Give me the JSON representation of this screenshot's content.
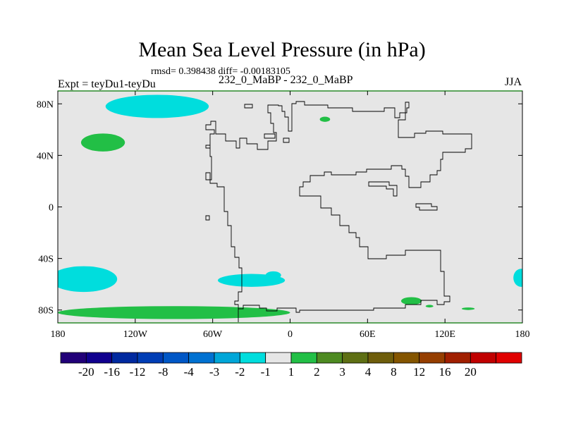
{
  "chart_data": {
    "type": "heatmap",
    "title": "Mean Sea Level Pressure (in hPa)",
    "stats_text": "rmsd= 0.398438 diff= -0.00183105",
    "left_label": "Expt = teyDu1-teyDu",
    "center_label": "232_0_MaBP - 232_0_MaBP",
    "right_label": "JJA",
    "xlim": [
      -180,
      180
    ],
    "ylim": [
      -90,
      90
    ],
    "x_ticks": [
      {
        "value": -180,
        "label": "180"
      },
      {
        "value": -120,
        "label": "120W"
      },
      {
        "value": -60,
        "label": "60W"
      },
      {
        "value": 0,
        "label": "0"
      },
      {
        "value": 60,
        "label": "60E"
      },
      {
        "value": 120,
        "label": "120E"
      },
      {
        "value": 180,
        "label": "180"
      }
    ],
    "y_ticks": [
      {
        "value": 80,
        "label": "80N"
      },
      {
        "value": 40,
        "label": "40N"
      },
      {
        "value": 0,
        "label": "0"
      },
      {
        "value": -40,
        "label": "40S"
      },
      {
        "value": -80,
        "label": "80S"
      }
    ],
    "background_color": "#e6e6e6",
    "colorbar": {
      "colors": [
        "#210078",
        "#10008e",
        "#00299f",
        "#003db5",
        "#0057c6",
        "#0071d1",
        "#00a6d8",
        "#00dddd",
        "#e6e6e6",
        "#22bf46",
        "#4d8a21",
        "#5e6f14",
        "#6e5d0b",
        "#845500",
        "#953e00",
        "#a01f00",
        "#c00000",
        "#e00000"
      ],
      "labels": [
        "-20",
        "-16",
        "-12",
        "-8",
        "-4",
        "-3",
        "-2",
        "-1",
        "1",
        "2",
        "3",
        "4",
        "8",
        "12",
        "16",
        "20"
      ]
    },
    "anomaly_regions": [
      {
        "level": "-2 to -1",
        "color": "#00dddd",
        "lon": -103,
        "lat": 78,
        "rlon": 40,
        "rlat": 9
      },
      {
        "level": "-2 to -1",
        "color": "#00dddd",
        "lon": -160,
        "lat": -56,
        "rlon": 26,
        "rlat": 10
      },
      {
        "level": "-2 to -1",
        "color": "#00dddd",
        "lon": -30,
        "lat": -57,
        "rlon": 26,
        "rlat": 5
      },
      {
        "level": "-2 to -1",
        "color": "#00dddd",
        "lon": -13,
        "lat": -53,
        "rlon": 6,
        "rlat": 3
      },
      {
        "level": "-2 to -1",
        "color": "#00dddd",
        "lon": 179,
        "lat": -55,
        "rlon": 6,
        "rlat": 7
      },
      {
        "level": "1 to 2",
        "color": "#22bf46",
        "lon": -145,
        "lat": 50,
        "rlon": 17,
        "rlat": 7
      },
      {
        "level": "1 to 2",
        "color": "#22bf46",
        "lon": 27,
        "lat": 68,
        "rlon": 4,
        "rlat": 2
      },
      {
        "level": "1 to 2",
        "color": "#22bf46",
        "lon": -90,
        "lat": -82,
        "rlon": 90,
        "rlat": 5
      },
      {
        "level": "1 to 2",
        "color": "#22bf46",
        "lon": 94,
        "lat": -73,
        "rlon": 8,
        "rlat": 3
      },
      {
        "level": "1 to 2",
        "color": "#22bf46",
        "lon": 108,
        "lat": -77,
        "rlon": 3,
        "rlat": 1
      },
      {
        "level": "1 to 2",
        "color": "#22bf46",
        "lon": 138,
        "lat": -79,
        "rlon": 5,
        "rlat": 1
      }
    ]
  }
}
